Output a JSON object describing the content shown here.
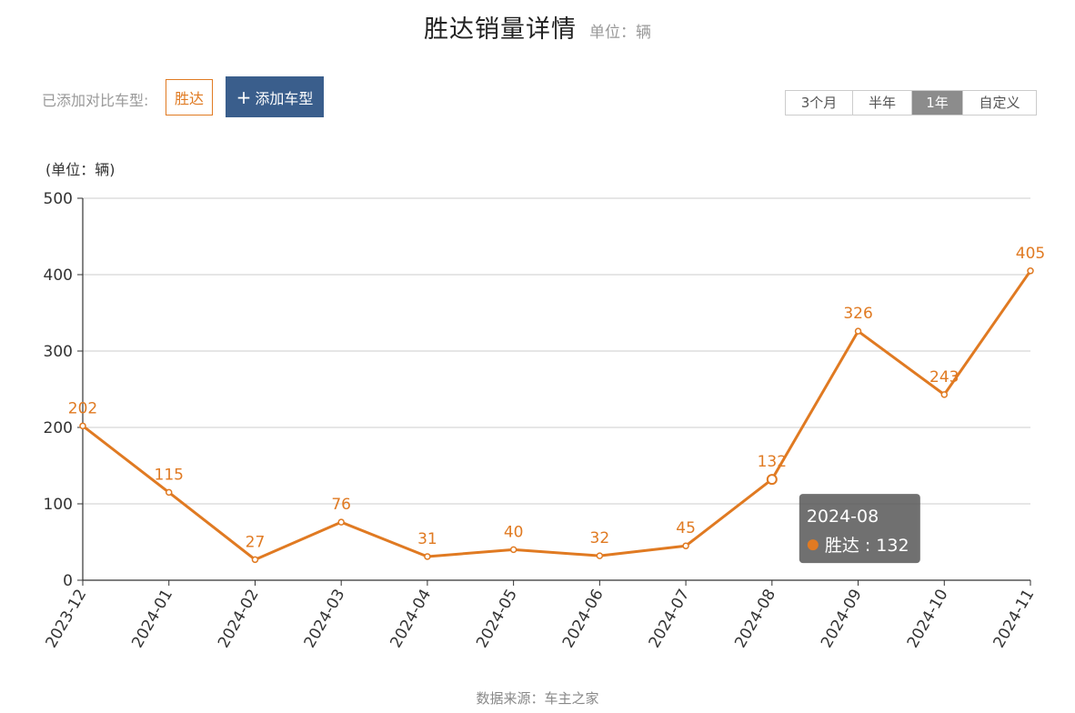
{
  "header": {
    "title": "胜达销量详情",
    "unit": "单位：辆"
  },
  "compare": {
    "label": "已添加对比车型:",
    "models": [
      "胜达"
    ],
    "add_button": "添加车型",
    "add_icon": "plus-icon"
  },
  "range_tabs": [
    {
      "label": "3个月",
      "active": false
    },
    {
      "label": "半年",
      "active": false
    },
    {
      "label": "1年",
      "active": true
    },
    {
      "label": "自定义",
      "active": false
    }
  ],
  "chart_data": {
    "type": "line",
    "ylabel": "(单位：辆)",
    "ylim": [
      0,
      500
    ],
    "yticks": [
      0,
      100,
      200,
      300,
      400,
      500
    ],
    "categories": [
      "2023-12",
      "2024-01",
      "2024-02",
      "2024-03",
      "2024-04",
      "2024-05",
      "2024-06",
      "2024-07",
      "2024-08",
      "2024-09",
      "2024-10",
      "2024-11"
    ],
    "series": [
      {
        "name": "胜达",
        "color": "#e07a22",
        "values": [
          202,
          115,
          27,
          76,
          31,
          40,
          32,
          45,
          132,
          326,
          243,
          405
        ]
      }
    ],
    "grid": true,
    "tooltip": {
      "category": "2024-08",
      "series": "胜达",
      "value": 132
    }
  },
  "footer": {
    "source": "数据来源：车主之家"
  }
}
